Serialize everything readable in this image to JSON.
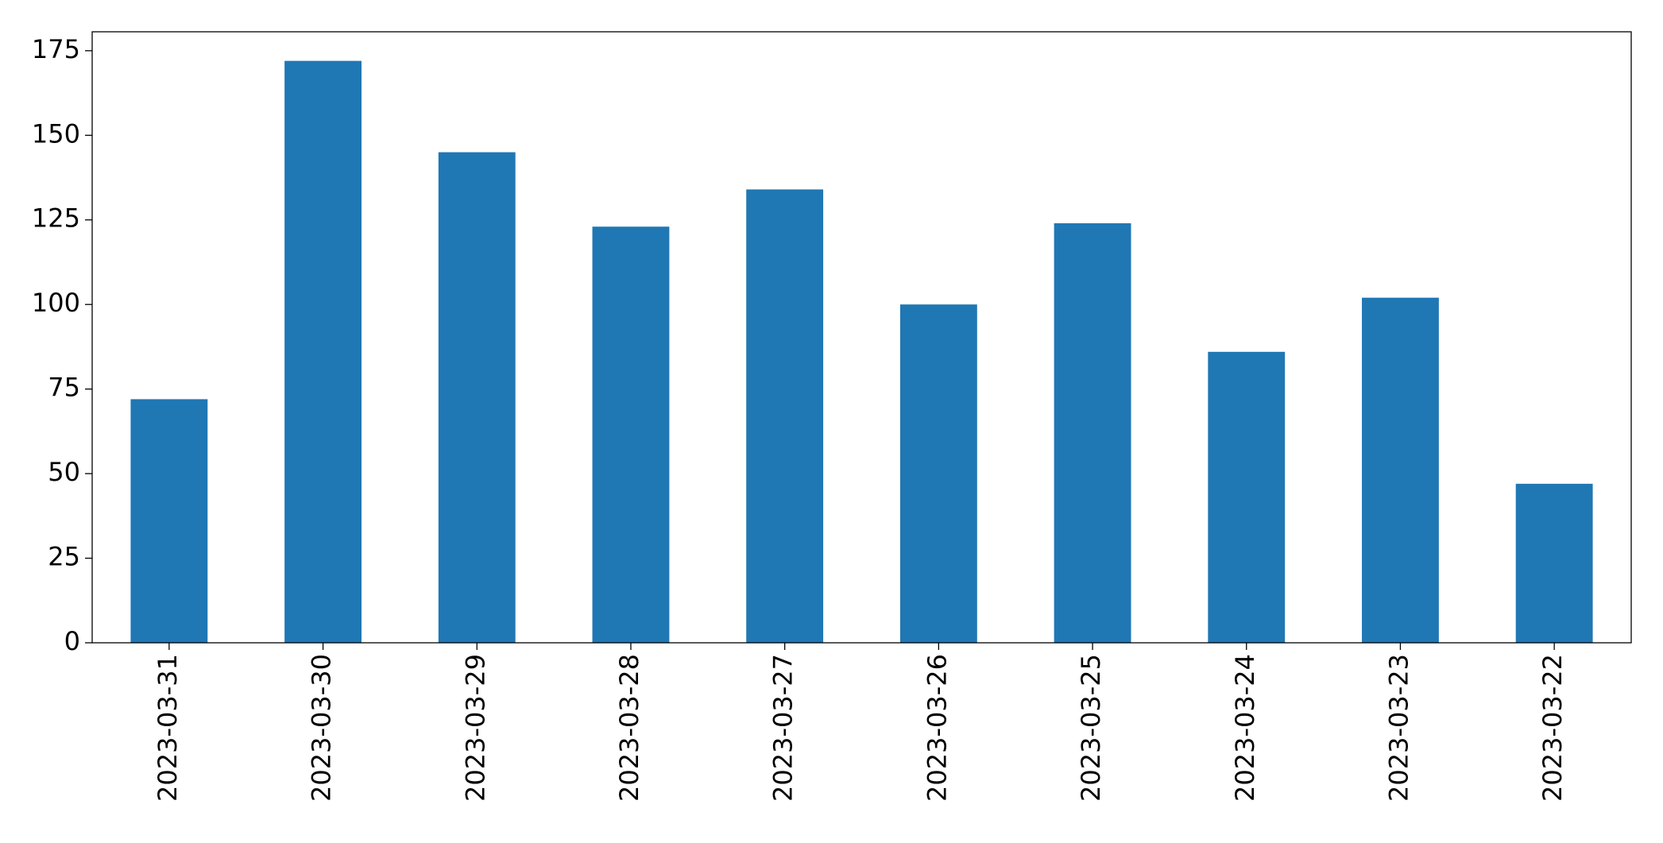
{
  "chart_data": {
    "type": "bar",
    "categories": [
      "2023-03-31",
      "2023-03-30",
      "2023-03-29",
      "2023-03-28",
      "2023-03-27",
      "2023-03-26",
      "2023-03-25",
      "2023-03-24",
      "2023-03-23",
      "2023-03-22"
    ],
    "values": [
      72,
      172,
      145,
      123,
      134,
      100,
      124,
      86,
      102,
      47
    ],
    "color": "#1f77b4",
    "ylim": [
      0,
      180.6
    ],
    "yticks": [
      0,
      25,
      50,
      75,
      100,
      125,
      150,
      175
    ],
    "grid": false
  }
}
